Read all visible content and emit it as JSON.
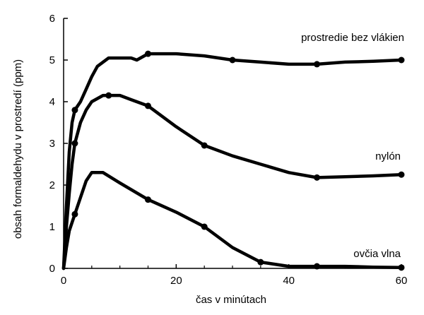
{
  "chart_data": {
    "type": "line",
    "xlabel": "čas v minútach",
    "ylabel": "obsah formaldehydu v prostredí (ppm)",
    "xlim": [
      0,
      60
    ],
    "ylim": [
      0,
      6
    ],
    "x_ticks": [
      0,
      20,
      40,
      60
    ],
    "y_ticks": [
      0,
      1,
      2,
      3,
      4,
      5,
      6
    ],
    "grid": false,
    "legend": "none (series labeled inline at right)",
    "colors": {
      "line": "#000000",
      "background": "#ffffff"
    },
    "series": [
      {
        "name": "prostredie bez vlákien",
        "points": [
          [
            0,
            0
          ],
          [
            0.5,
            1.5
          ],
          [
            1,
            2.8
          ],
          [
            1.5,
            3.5
          ],
          [
            2,
            3.8
          ],
          [
            3,
            4.0
          ],
          [
            4,
            4.3
          ],
          [
            5,
            4.6
          ],
          [
            6,
            4.85
          ],
          [
            8,
            5.05
          ],
          [
            10,
            5.05
          ],
          [
            12,
            5.05
          ],
          [
            13,
            5.0
          ],
          [
            15,
            5.15
          ],
          [
            20,
            5.15
          ],
          [
            25,
            5.1
          ],
          [
            30,
            5.0
          ],
          [
            35,
            4.95
          ],
          [
            40,
            4.9
          ],
          [
            45,
            4.9
          ],
          [
            50,
            4.95
          ],
          [
            55,
            4.97
          ],
          [
            60,
            5.0
          ]
        ]
      },
      {
        "name": "nylón",
        "points": [
          [
            0,
            0
          ],
          [
            0.5,
            1.0
          ],
          [
            1,
            1.8
          ],
          [
            1.5,
            2.5
          ],
          [
            2,
            3.0
          ],
          [
            3,
            3.5
          ],
          [
            4,
            3.8
          ],
          [
            5,
            4.0
          ],
          [
            7,
            4.15
          ],
          [
            8,
            4.15
          ],
          [
            10,
            4.15
          ],
          [
            12,
            4.05
          ],
          [
            15,
            3.9
          ],
          [
            20,
            3.4
          ],
          [
            25,
            2.95
          ],
          [
            30,
            2.7
          ],
          [
            35,
            2.5
          ],
          [
            40,
            2.3
          ],
          [
            45,
            2.18
          ],
          [
            50,
            2.2
          ],
          [
            55,
            2.22
          ],
          [
            60,
            2.25
          ]
        ]
      },
      {
        "name": "ovčia vlna",
        "points": [
          [
            0,
            0
          ],
          [
            0.5,
            0.5
          ],
          [
            1,
            0.9
          ],
          [
            2,
            1.3
          ],
          [
            3,
            1.7
          ],
          [
            4,
            2.1
          ],
          [
            5,
            2.3
          ],
          [
            7,
            2.3
          ],
          [
            10,
            2.05
          ],
          [
            15,
            1.65
          ],
          [
            20,
            1.35
          ],
          [
            25,
            1.0
          ],
          [
            30,
            0.5
          ],
          [
            35,
            0.15
          ],
          [
            40,
            0.05
          ],
          [
            45,
            0.05
          ],
          [
            50,
            0.05
          ],
          [
            55,
            0.03
          ],
          [
            60,
            0.02
          ]
        ]
      }
    ]
  }
}
